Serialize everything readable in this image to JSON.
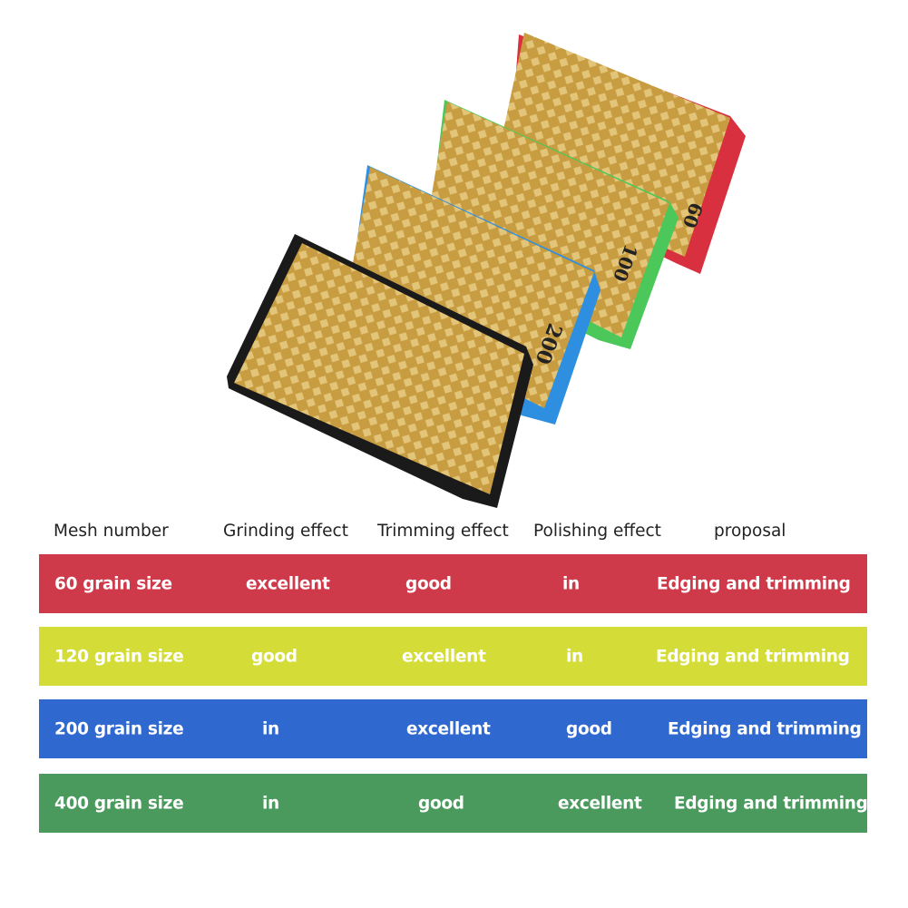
{
  "product": {
    "pads": [
      {
        "label": "60",
        "side_color": "#d8303e"
      },
      {
        "label": "100",
        "side_color": "#4cc85a"
      },
      {
        "label": "200",
        "side_color": "#2e8fe0"
      },
      {
        "label": "",
        "side_color": "#1a1a1a"
      }
    ],
    "face_color": "#c9a24a"
  },
  "table": {
    "headers": [
      "Mesh number",
      "Grinding effect",
      "Trimming effect",
      "Polishing effect",
      "proposal"
    ],
    "rows": [
      {
        "color": "#cf3a4a",
        "cells": [
          "60 grain size",
          "excellent",
          "good",
          "in",
          "Edging and trimming"
        ]
      },
      {
        "color": "#d4dd38",
        "cells": [
          "120 grain size",
          "good",
          "excellent",
          "in",
          "Edging and trimming"
        ]
      },
      {
        "color": "#2f69cf",
        "cells": [
          "200 grain size",
          "in",
          "excellent",
          "good",
          "Edging and trimming"
        ]
      },
      {
        "color": "#4a9a5e",
        "cells": [
          "400 grain size",
          "in",
          "good",
          "excellent",
          "Edging and trimming"
        ]
      }
    ]
  }
}
